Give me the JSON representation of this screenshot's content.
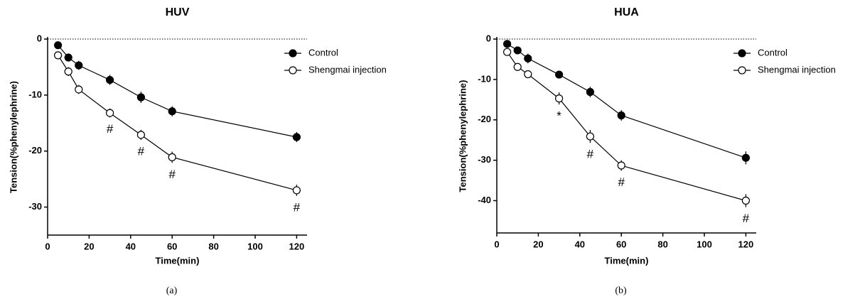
{
  "chart_data": [
    {
      "type": "line",
      "title": "HUV",
      "xlabel": "Time(min)",
      "ylabel": "Tension(%phenylephrine)",
      "caption": "(a)",
      "x": [
        5,
        10,
        15,
        30,
        45,
        60,
        120
      ],
      "series": [
        {
          "name": "Control",
          "color": "#000000",
          "marker": "filled",
          "values": [
            -1.1,
            -3.3,
            -4.7,
            -7.3,
            -10.4,
            -12.9,
            -17.5
          ],
          "errors": [
            0.5,
            0.7,
            0.8,
            0.9,
            1.0,
            0.9,
            0.9
          ]
        },
        {
          "name": "Shengmai injection",
          "color": "#000000",
          "marker": "open",
          "values": [
            -2.9,
            -5.8,
            -9.0,
            -13.2,
            -17.1,
            -21.1,
            -27.0
          ],
          "errors": [
            0.6,
            0.8,
            0.8,
            0.8,
            0.9,
            1.0,
            1.0
          ]
        }
      ],
      "significance": [
        null,
        null,
        null,
        "#",
        "#",
        "#",
        "#"
      ],
      "xlim": [
        0,
        125
      ],
      "xticks": [
        0,
        20,
        40,
        60,
        80,
        100,
        120
      ],
      "ylim": [
        -35,
        0
      ],
      "yticks": [
        0,
        -10,
        -20,
        -30
      ],
      "zero_line": true,
      "legend": "top-right"
    },
    {
      "type": "line",
      "title": "HUA",
      "xlabel": "Time(min)",
      "ylabel": "Tension(%phenylephrine)",
      "caption": "(b)",
      "x": [
        5,
        10,
        15,
        30,
        45,
        60,
        120
      ],
      "series": [
        {
          "name": "Control",
          "color": "#000000",
          "marker": "filled",
          "values": [
            -1.2,
            -2.8,
            -4.8,
            -8.8,
            -13.1,
            -18.9,
            -29.4
          ],
          "errors": [
            0.6,
            0.8,
            1.2,
            0.9,
            1.3,
            1.3,
            1.6
          ]
        },
        {
          "name": "Shengmai injection",
          "color": "#000000",
          "marker": "open",
          "values": [
            -3.2,
            -6.9,
            -8.7,
            -14.7,
            -24.1,
            -31.3,
            -40.0
          ],
          "errors": [
            0.9,
            0.9,
            0.8,
            1.5,
            1.6,
            1.3,
            1.6
          ]
        }
      ],
      "significance": [
        null,
        null,
        null,
        "*",
        "#",
        "#",
        "#"
      ],
      "xlim": [
        0,
        125
      ],
      "xticks": [
        0,
        20,
        40,
        60,
        80,
        100,
        120
      ],
      "ylim": [
        -48,
        0
      ],
      "yticks": [
        0,
        -10,
        -20,
        -30,
        -40
      ],
      "zero_line": true,
      "legend": "top-right"
    }
  ]
}
